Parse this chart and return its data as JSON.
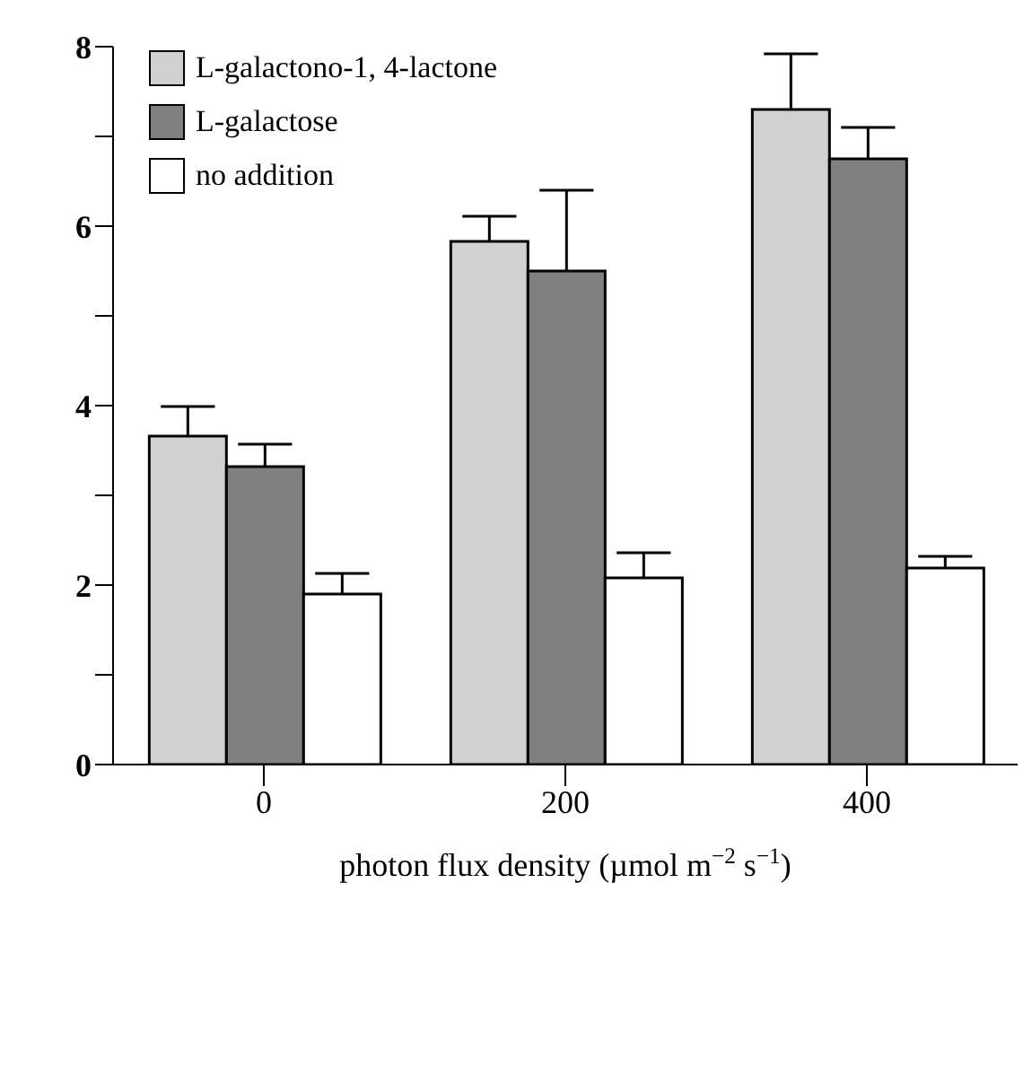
{
  "chart_data": {
    "type": "bar",
    "xlabel": "photon flux density (µmol m$^{−2}$ s$^{−1}$)",
    "categories": [
      "0",
      "200",
      "400"
    ],
    "series": [
      {
        "name": "L-galactono-1, 4-lactone",
        "color": "#d0d0d0",
        "values": [
          3.66,
          5.83,
          7.3
        ],
        "errors": [
          [
            3.66,
            3.99
          ],
          [
            5.83,
            6.11
          ],
          [
            7.3,
            7.92
          ]
        ]
      },
      {
        "name": "L-galactose",
        "color": "#808080",
        "values": [
          3.32,
          5.5,
          6.75
        ],
        "errors": [
          [
            3.32,
            3.57
          ],
          [
            5.5,
            6.4
          ],
          [
            6.75,
            7.1
          ]
        ]
      },
      {
        "name": "no addition",
        "color": "#ffffff",
        "values": [
          1.9,
          2.08,
          2.19
        ],
        "errors": [
          [
            1.9,
            2.13
          ],
          [
            2.08,
            2.36
          ],
          [
            2.19,
            2.32
          ]
        ]
      }
    ],
    "ylim": [
      0,
      8
    ],
    "yticks": [
      0,
      {
        "value": 1,
        "label": null
      },
      2,
      {
        "value": 3,
        "label": null
      },
      4,
      {
        "value": 5,
        "label": null
      },
      6,
      {
        "value": 7,
        "label": null
      },
      8
    ],
    "grid": false,
    "legend": "top left"
  }
}
